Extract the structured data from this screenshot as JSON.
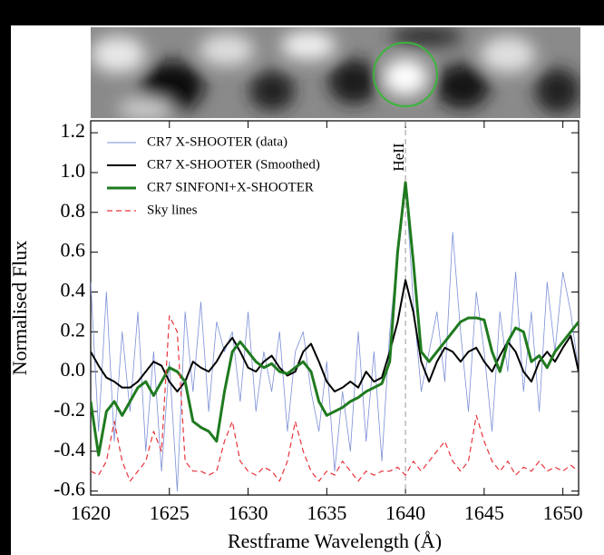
{
  "chart_data": {
    "type": "line",
    "xlabel": "Restframe Wavelength (Å)",
    "ylabel": "Normalised Flux",
    "annotations": [
      {
        "text": "HeII",
        "x": 1640
      }
    ],
    "x": [
      1620,
      1620.5,
      1621,
      1621.5,
      1622,
      1622.5,
      1623,
      1623.5,
      1624,
      1624.5,
      1625,
      1625.5,
      1626,
      1626.5,
      1627,
      1627.5,
      1628,
      1628.5,
      1629,
      1629.5,
      1630,
      1630.5,
      1631,
      1631.5,
      1632,
      1632.5,
      1633,
      1633.5,
      1634,
      1634.5,
      1635,
      1635.5,
      1636,
      1636.5,
      1637,
      1637.5,
      1638,
      1638.5,
      1639,
      1639.5,
      1640,
      1640.5,
      1641,
      1641.5,
      1642,
      1642.5,
      1643,
      1643.5,
      1644,
      1644.5,
      1645,
      1645.5,
      1646,
      1646.5,
      1647,
      1647.5,
      1648,
      1648.5,
      1649,
      1649.5,
      1650,
      1650.5,
      1651
    ],
    "series": [
      {
        "name": "CR7 X-SHOOTER (data)",
        "color": "#7b8fd6",
        "width": 0.8,
        "style": "solid",
        "values": [
          0.45,
          -0.3,
          0.4,
          -0.35,
          0.2,
          -0.2,
          0.3,
          -0.4,
          0.1,
          -0.5,
          0.05,
          -0.6,
          0.3,
          -0.1,
          0.35,
          -0.2,
          0.25,
          0.1,
          0.2,
          -0.15,
          0.3,
          -0.2,
          0.1,
          -0.1,
          0.2,
          -0.3,
          0.1,
          0.2,
          -0.1,
          -0.3,
          0.05,
          -0.5,
          -0.1,
          -0.4,
          0.2,
          -0.35,
          0.1,
          -0.45,
          0.2,
          0.6,
          0.95,
          0.35,
          -0.1,
          0.1,
          0.3,
          -0.05,
          0.7,
          0.2,
          -0.2,
          0.4,
          0.1,
          -0.3,
          0.3,
          0.0,
          0.5,
          -0.1,
          0.3,
          -0.2,
          0.45,
          0.1,
          0.5,
          0.3,
          0.0
        ]
      },
      {
        "name": "CR7 X-SHOOTER (Smoothed)",
        "color": "#000000",
        "width": 2,
        "style": "solid",
        "values": [
          0.1,
          0.03,
          -0.03,
          -0.05,
          -0.08,
          -0.08,
          -0.05,
          0.0,
          0.05,
          0.03,
          -0.05,
          -0.1,
          -0.05,
          0.05,
          0.02,
          0.0,
          0.05,
          0.12,
          0.17,
          0.1,
          0.02,
          0.0,
          0.05,
          0.08,
          0.02,
          -0.02,
          0.0,
          0.1,
          0.14,
          0.05,
          -0.05,
          -0.1,
          -0.08,
          -0.05,
          -0.08,
          0.0,
          -0.05,
          -0.03,
          0.1,
          0.25,
          0.46,
          0.3,
          0.05,
          -0.05,
          0.05,
          0.12,
          0.1,
          0.05,
          0.1,
          0.12,
          0.05,
          0.0,
          0.08,
          0.15,
          0.1,
          0.0,
          -0.05,
          0.05,
          0.1,
          0.05,
          0.12,
          0.18,
          0.0
        ]
      },
      {
        "name": "CR7 SINFONI+X-SHOOTER",
        "color": "#1f7a1f",
        "width": 3,
        "style": "solid",
        "values": [
          -0.15,
          -0.42,
          -0.2,
          -0.15,
          -0.22,
          -0.15,
          -0.08,
          -0.05,
          -0.12,
          -0.05,
          0.02,
          0.0,
          -0.05,
          -0.25,
          -0.28,
          -0.3,
          -0.35,
          -0.1,
          0.1,
          0.15,
          0.1,
          0.05,
          0.02,
          0.04,
          0.0,
          -0.01,
          0.02,
          0.05,
          0.0,
          -0.15,
          -0.22,
          -0.2,
          -0.18,
          -0.15,
          -0.13,
          -0.1,
          -0.08,
          -0.06,
          0.05,
          0.6,
          0.95,
          0.55,
          0.1,
          0.05,
          0.1,
          0.15,
          0.2,
          0.25,
          0.27,
          0.27,
          0.26,
          0.1,
          0.0,
          0.15,
          0.22,
          0.2,
          0.05,
          0.08,
          0.02,
          0.1,
          0.15,
          0.2,
          0.25
        ]
      },
      {
        "name": "Sky lines",
        "color": "#e8333a",
        "width": 1.2,
        "style": "dashed",
        "values": [
          -0.5,
          -0.52,
          -0.45,
          -0.25,
          -0.45,
          -0.55,
          -0.5,
          -0.45,
          -0.3,
          -0.4,
          0.28,
          0.2,
          -0.45,
          -0.5,
          -0.5,
          -0.52,
          -0.5,
          -0.35,
          -0.25,
          -0.45,
          -0.5,
          -0.52,
          -0.48,
          -0.5,
          -0.55,
          -0.45,
          -0.25,
          -0.4,
          -0.5,
          -0.55,
          -0.5,
          -0.52,
          -0.45,
          -0.5,
          -0.55,
          -0.5,
          -0.52,
          -0.5,
          -0.5,
          -0.48,
          -0.52,
          -0.45,
          -0.5,
          -0.45,
          -0.4,
          -0.35,
          -0.45,
          -0.5,
          -0.45,
          -0.22,
          -0.35,
          -0.45,
          -0.5,
          -0.45,
          -0.52,
          -0.48,
          -0.5,
          -0.45,
          -0.5,
          -0.48,
          -0.5,
          -0.47,
          -0.5
        ]
      }
    ],
    "xlim": [
      1620,
      1651
    ],
    "ylim": [
      -0.62,
      1.26
    ],
    "xticks": [
      1620,
      1625,
      1630,
      1635,
      1640,
      1645,
      1650
    ],
    "yticks": [
      {
        "value": 1.2,
        "label": "1.2"
      },
      {
        "value": 1,
        "label": "1.0"
      },
      0.8,
      0.6,
      0.4,
      0.2,
      {
        "value": 0,
        "label": "0.0"
      },
      -0.2,
      -0.4,
      -0.6
    ],
    "grid": false,
    "legend": "upper left"
  }
}
